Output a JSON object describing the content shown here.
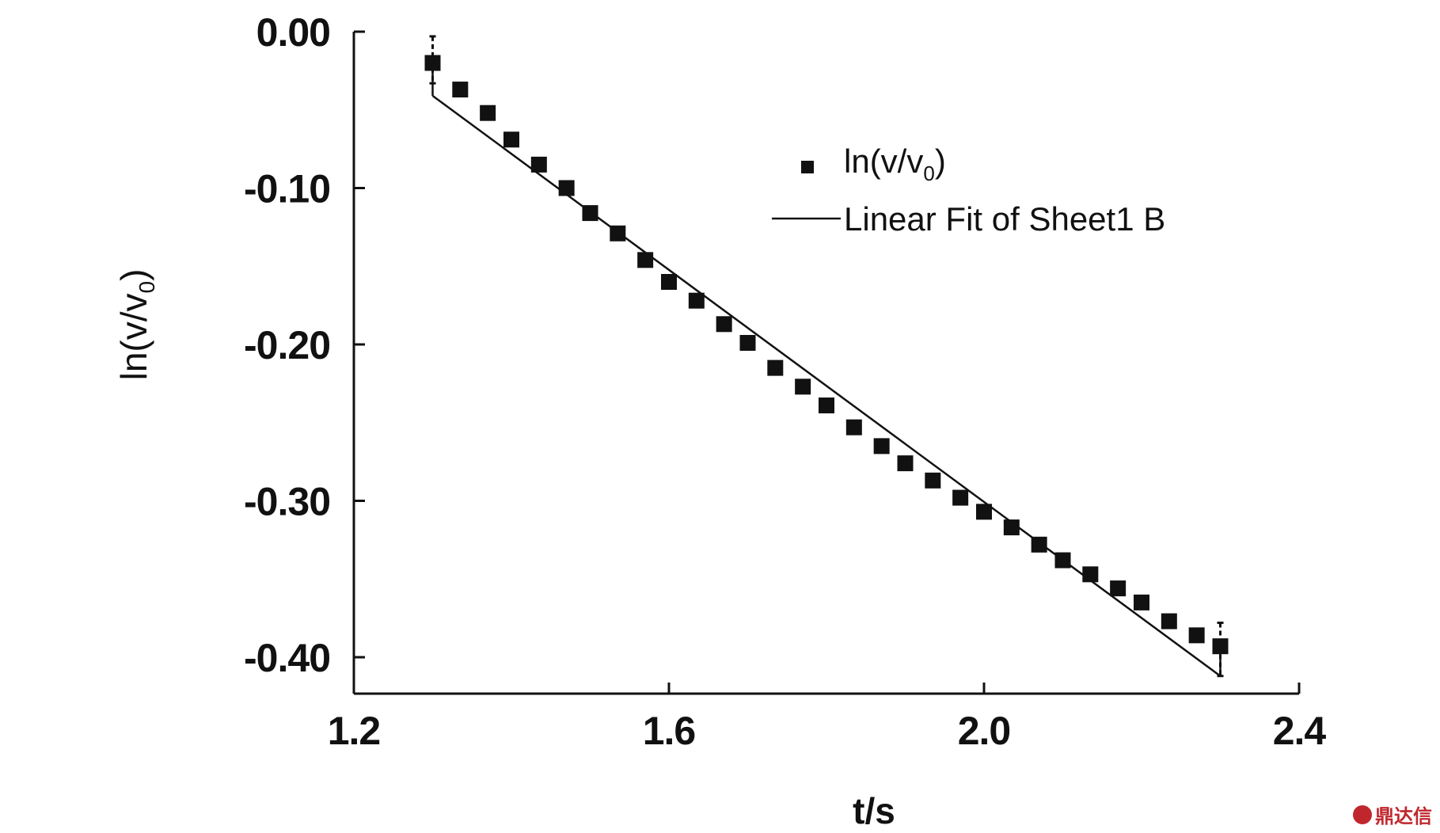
{
  "chart_data": {
    "type": "scatter",
    "xlabel": "t/s",
    "ylabel": "ln(v/v",
    "ylabel_sub": "0",
    "ylabel_close": ")",
    "xlim": [
      1.2,
      2.4
    ],
    "ylim": [
      -0.425,
      0.0
    ],
    "x_ticks": [
      {
        "value": 1.2,
        "label": "1.2"
      },
      {
        "value": 1.6,
        "label": "1.6"
      },
      {
        "value": 2.0,
        "label": "2.0"
      },
      {
        "value": 2.4,
        "label": "2.4"
      }
    ],
    "y_ticks": [
      {
        "value": 0.0,
        "label": "0.00"
      },
      {
        "value": -0.1,
        "label": "-0.10"
      },
      {
        "value": -0.2,
        "label": "-0.20"
      },
      {
        "value": -0.3,
        "label": "-0.30"
      },
      {
        "value": -0.4,
        "label": "-0.40"
      }
    ],
    "grid": false,
    "legend_position": "top-right",
    "series": [
      {
        "name": "ln(v/v",
        "name_sub": "0",
        "name_close": ")",
        "kind": "scatter",
        "marker": "square",
        "color": "#111111",
        "x": [
          1.3,
          1.335,
          1.37,
          1.4,
          1.435,
          1.47,
          1.5,
          1.535,
          1.57,
          1.6,
          1.635,
          1.67,
          1.7,
          1.735,
          1.77,
          1.8,
          1.835,
          1.87,
          1.9,
          1.935,
          1.97,
          2.0,
          2.035,
          2.07,
          2.1,
          2.135,
          2.17,
          2.2,
          2.235,
          2.27,
          2.3
        ],
        "y": [
          -0.02,
          -0.037,
          -0.052,
          -0.069,
          -0.085,
          -0.1,
          -0.116,
          -0.129,
          -0.146,
          -0.16,
          -0.172,
          -0.187,
          -0.199,
          -0.215,
          -0.227,
          -0.239,
          -0.253,
          -0.265,
          -0.276,
          -0.287,
          -0.298,
          -0.307,
          -0.317,
          -0.328,
          -0.338,
          -0.347,
          -0.356,
          -0.365,
          -0.377,
          -0.386,
          -0.393
        ]
      },
      {
        "name": "Linear Fit of Sheet1 B",
        "kind": "line",
        "color": "#111111",
        "x": [
          1.3,
          2.3
        ],
        "y": [
          -0.041,
          -0.412
        ]
      }
    ],
    "error_bars": [
      {
        "x": 1.3,
        "low": -0.033,
        "high": -0.003
      },
      {
        "x": 2.3,
        "low": -0.412,
        "high": -0.378
      }
    ],
    "fit_end_ticks": [
      {
        "x": 1.3,
        "from": -0.041,
        "to": -0.02
      },
      {
        "x": 2.3,
        "from": -0.412,
        "to": -0.393
      }
    ]
  },
  "watermark": {
    "text": "鼎达信",
    "color": "#c0272d"
  }
}
